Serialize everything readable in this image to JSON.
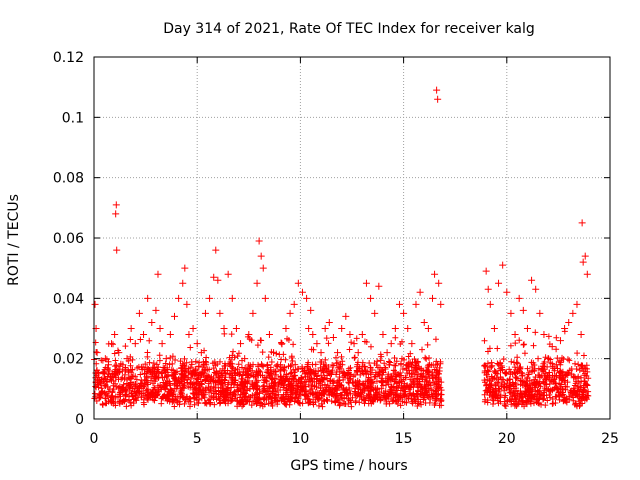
{
  "chart_data": {
    "type": "scatter",
    "title": "Day 314 of 2021, Rate Of TEC Index for receiver kalg",
    "xlabel": "GPS time / hours",
    "ylabel": "ROTI / TECUs",
    "xlim": [
      0,
      25
    ],
    "ylim": [
      0,
      0.12
    ],
    "xticks": [
      0,
      5,
      10,
      15,
      20,
      25
    ],
    "xtick_labels": [
      "0",
      "5",
      "10",
      "15",
      "20",
      "25"
    ],
    "yticks": [
      0,
      0.02,
      0.04,
      0.06,
      0.08,
      0.1,
      0.12
    ],
    "ytick_labels": [
      "0",
      "0.02",
      "0.04",
      "0.06",
      "0.08",
      "0.1",
      "0.12"
    ],
    "grid": true,
    "marker": "+",
    "color": "#ff0000",
    "series": [
      {
        "name": "ROTI",
        "x": [
          0.05,
          0.1,
          0.15,
          0.2,
          0.3,
          0.4,
          0.55,
          0.7,
          0.85,
          1.0,
          1.05,
          1.08,
          1.1,
          1.2,
          1.4,
          1.6,
          1.8,
          2.0,
          2.2,
          2.4,
          2.6,
          2.8,
          3.0,
          3.1,
          3.2,
          3.3,
          3.5,
          3.7,
          3.9,
          4.1,
          4.3,
          4.4,
          4.5,
          4.6,
          4.8,
          5.0,
          5.2,
          5.4,
          5.6,
          5.8,
          5.9,
          6.0,
          6.1,
          6.3,
          6.5,
          6.7,
          6.9,
          7.1,
          7.3,
          7.5,
          7.7,
          7.9,
          8.0,
          8.1,
          8.2,
          8.3,
          8.5,
          8.7,
          8.9,
          9.1,
          9.3,
          9.5,
          9.7,
          9.9,
          10.1,
          10.3,
          10.4,
          10.5,
          10.6,
          10.8,
          11.0,
          11.2,
          11.4,
          11.6,
          11.8,
          12.0,
          12.2,
          12.4,
          12.6,
          12.8,
          13.0,
          13.2,
          13.4,
          13.6,
          13.8,
          14.0,
          14.2,
          14.4,
          14.6,
          14.8,
          15.0,
          15.2,
          15.4,
          15.6,
          15.8,
          16.0,
          16.2,
          16.4,
          16.5,
          16.6,
          16.65,
          16.7,
          16.8,
          19.0,
          19.1,
          19.2,
          19.4,
          19.6,
          19.8,
          20.0,
          20.2,
          20.4,
          20.6,
          20.8,
          21.0,
          21.2,
          21.4,
          21.6,
          21.8,
          22.0,
          22.2,
          22.4,
          22.6,
          22.8,
          23.0,
          23.2,
          23.4,
          23.6,
          23.65,
          23.7,
          23.8,
          23.9
        ],
        "y": [
          0.038,
          0.03,
          0.022,
          0.015,
          0.012,
          0.009,
          0.02,
          0.018,
          0.025,
          0.028,
          0.068,
          0.071,
          0.056,
          0.022,
          0.018,
          0.02,
          0.03,
          0.025,
          0.035,
          0.028,
          0.04,
          0.032,
          0.036,
          0.048,
          0.03,
          0.025,
          0.02,
          0.028,
          0.034,
          0.04,
          0.045,
          0.05,
          0.038,
          0.028,
          0.03,
          0.025,
          0.022,
          0.035,
          0.04,
          0.047,
          0.056,
          0.046,
          0.035,
          0.03,
          0.048,
          0.04,
          0.03,
          0.025,
          0.02,
          0.028,
          0.035,
          0.045,
          0.059,
          0.054,
          0.05,
          0.04,
          0.028,
          0.022,
          0.018,
          0.025,
          0.03,
          0.035,
          0.038,
          0.045,
          0.042,
          0.04,
          0.03,
          0.036,
          0.028,
          0.025,
          0.022,
          0.03,
          0.032,
          0.027,
          0.022,
          0.03,
          0.034,
          0.028,
          0.025,
          0.022,
          0.028,
          0.045,
          0.04,
          0.035,
          0.044,
          0.028,
          0.022,
          0.025,
          0.03,
          0.038,
          0.035,
          0.03,
          0.025,
          0.038,
          0.042,
          0.032,
          0.03,
          0.04,
          0.048,
          0.109,
          0.106,
          0.045,
          0.038,
          0.049,
          0.043,
          0.038,
          0.03,
          0.045,
          0.051,
          0.042,
          0.035,
          0.028,
          0.04,
          0.036,
          0.03,
          0.046,
          0.043,
          0.035,
          0.028,
          0.02,
          0.024,
          0.018,
          0.026,
          0.03,
          0.032,
          0.035,
          0.038,
          0.028,
          0.065,
          0.052,
          0.054,
          0.048
        ],
        "baseline_band": [
          0.008,
          0.02
        ]
      }
    ]
  }
}
